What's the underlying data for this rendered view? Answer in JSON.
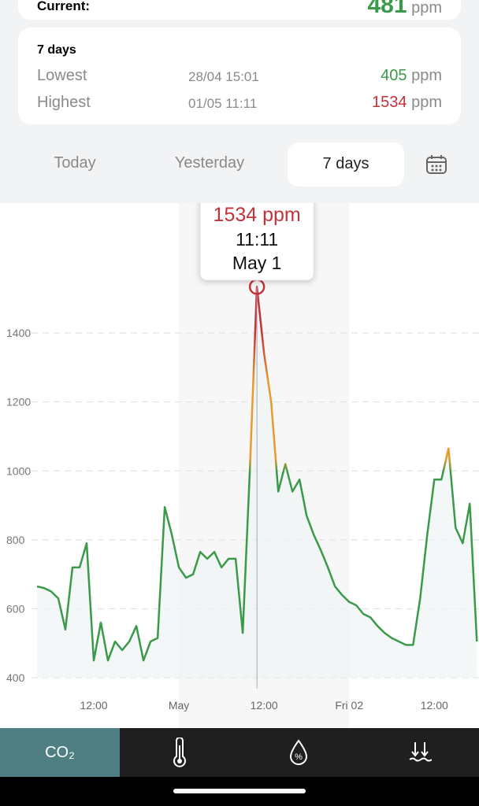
{
  "current_card": {
    "label": "Current:",
    "value": 481,
    "unit": "ppm"
  },
  "summary_card": {
    "period": "7 days",
    "rows": [
      {
        "label": "Lowest",
        "time": "28/04 15:01",
        "value": 405,
        "unit": "ppm"
      },
      {
        "label": "Highest",
        "time": "01/05 11:11",
        "value": 1534,
        "unit": "ppm"
      }
    ]
  },
  "tabs": [
    "Today",
    "Yesterday",
    "7 days"
  ],
  "tooltip": {
    "value": "1534 ppm",
    "time": "11:11",
    "date": "May 1"
  },
  "bottom_nav": {
    "co2": "CO₂"
  },
  "chart_data": {
    "type": "line",
    "color": "#3a9a4a",
    "x": [
      0,
      1,
      2,
      3,
      4,
      5,
      6,
      7,
      8,
      9,
      10,
      11,
      12,
      13,
      14,
      15,
      16,
      17,
      18,
      19,
      20,
      21,
      22,
      23,
      24,
      25,
      26,
      27,
      28,
      29,
      30,
      31,
      32,
      33,
      34,
      35,
      36,
      37,
      38,
      39,
      40,
      41,
      42,
      43,
      44,
      45,
      46,
      47,
      48,
      49,
      50,
      51,
      52,
      53,
      54,
      55,
      56,
      57,
      58,
      59,
      60,
      61,
      62
    ],
    "values": [
      665,
      660,
      650,
      630,
      540,
      720,
      720,
      790,
      450,
      560,
      450,
      505,
      480,
      505,
      550,
      450,
      505,
      515,
      895,
      815,
      720,
      690,
      700,
      765,
      745,
      765,
      720,
      745,
      745,
      530,
      1000,
      1534,
      1340,
      1200,
      940,
      1020,
      940,
      975,
      870,
      815,
      770,
      720,
      665,
      640,
      620,
      610,
      585,
      575,
      550,
      530,
      515,
      505,
      495,
      495,
      630,
      815,
      975,
      975,
      1065,
      835,
      790,
      905,
      505
    ],
    "xlim": [
      0,
      62.3
    ],
    "xticks": [
      {
        "value": 8,
        "label": "12:00"
      },
      {
        "value": 20,
        "label": "May"
      },
      {
        "value": 32,
        "label": "12:00"
      },
      {
        "value": 44,
        "label": "Fri 02"
      },
      {
        "value": 56,
        "label": "12:00"
      }
    ],
    "ylim": [
      400,
      1777
    ],
    "yticks": [
      400,
      600,
      800,
      1000,
      1200,
      1400
    ],
    "grid": true
  }
}
